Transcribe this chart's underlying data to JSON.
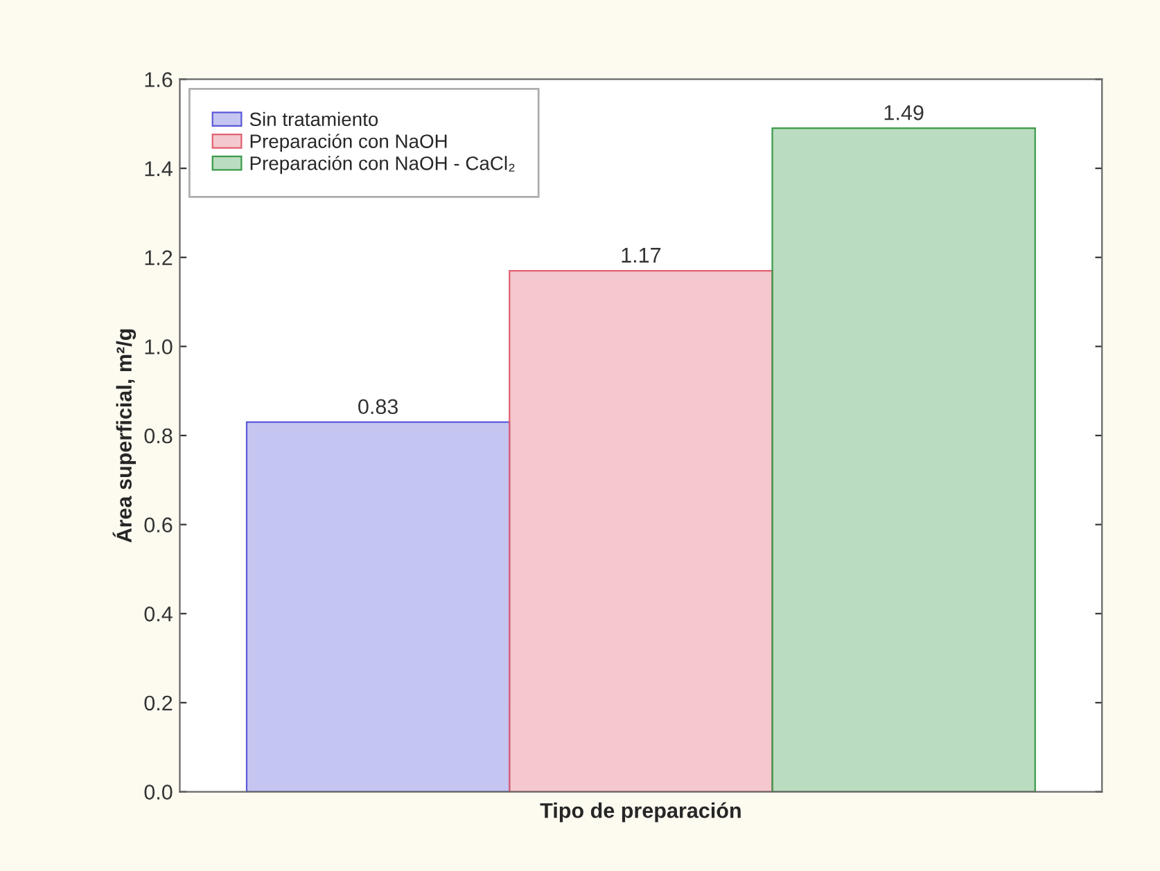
{
  "chart_data": {
    "type": "bar",
    "xlabel": "Tipo de preparación",
    "ylabel": "Área superficial, m²/g",
    "categories": [
      null
    ],
    "series": [
      {
        "name": "Sin tratamiento",
        "color": "#5a5ad8",
        "values": [
          0.83
        ]
      },
      {
        "name": "Preparación con NaOH",
        "color": "#e06070",
        "values": [
          1.17
        ]
      },
      {
        "name": "Preparación con NaOH - CaCl₂",
        "color": "#3a9a4a",
        "values": [
          1.49
        ]
      }
    ],
    "ylim": [
      0,
      1.6
    ],
    "yticks": [
      {
        "value": 0,
        "label": "0.0"
      },
      0.2,
      0.4,
      0.6,
      0.8,
      {
        "value": 1,
        "label": "1.0"
      },
      1.2,
      1.4,
      1.6
    ],
    "data_labels": true,
    "legend": "top left",
    "grid": false
  }
}
